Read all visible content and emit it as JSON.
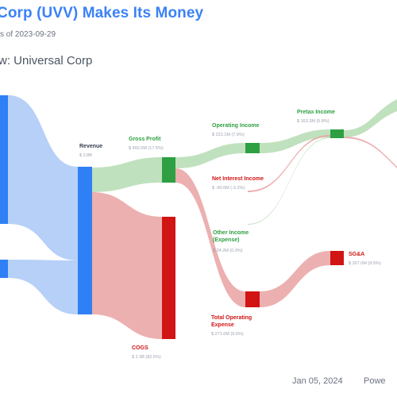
{
  "header": {
    "title": "Corp (UVV) Makes Its Money",
    "subtitle": "s of 2023-09-29",
    "company": "w: Universal Corp"
  },
  "footer": {
    "date": "Jan 05, 2024",
    "brand": "Powe"
  },
  "colors": {
    "blue": "#2f80f5",
    "blue_flow": "#a9c8f7",
    "green": "#2ea043",
    "green_flow": "#b5dcb3",
    "red": "#d11414",
    "red_flow": "#e9a2a2",
    "title": "#3b82f6"
  },
  "chart_data": {
    "type": "sankey",
    "title": "Corp (UVV) Makes Its Money",
    "nodes": [
      {
        "id": "revenue",
        "label": "Revenue",
        "value_text": "$ 2.8B",
        "color": "blue"
      },
      {
        "id": "gross_profit",
        "label": "Gross Profit",
        "value_text": "$ 492.0M (17.5%)",
        "color": "green"
      },
      {
        "id": "cogs",
        "label": "COGS",
        "value_text": "$ 2.3B (82.5%)",
        "color": "red"
      },
      {
        "id": "operating_income",
        "label": "Operating Income",
        "value_text": "$ 222.1M (7.9%)",
        "color": "green"
      },
      {
        "id": "total_operating_expense",
        "label": "Total Operating Expense",
        "value_text": "$ 271.0M (9.6%)",
        "color": "red"
      },
      {
        "id": "pretax_income",
        "label": "Pretax Income",
        "value_text": "$ 163.3M (5.8%)",
        "color": "green"
      },
      {
        "id": "net_interest_income",
        "label": "Net Interest Income",
        "value_text": "$ -90.0M (-3.2%)",
        "color": "red"
      },
      {
        "id": "other_income",
        "label": "Other Income (Expense)",
        "value_text": "$ 24.2M (0.9%)",
        "color": "green"
      },
      {
        "id": "sga",
        "label": "SG&A",
        "value_text": "$ 267.0M (9.5%)",
        "color": "red"
      }
    ],
    "links": [
      {
        "source": "segment_1",
        "target": "revenue",
        "value": 2.23,
        "color": "blue"
      },
      {
        "source": "segment_2",
        "target": "revenue",
        "value": 0.57,
        "color": "blue"
      },
      {
        "source": "revenue",
        "target": "gross_profit",
        "value": 0.492,
        "color": "green"
      },
      {
        "source": "revenue",
        "target": "cogs",
        "value": 2.31,
        "color": "red"
      },
      {
        "source": "gross_profit",
        "target": "operating_income",
        "value": 0.222,
        "color": "green"
      },
      {
        "source": "gross_profit",
        "target": "total_operating_expense",
        "value": 0.271,
        "color": "red"
      },
      {
        "source": "operating_income",
        "target": "pretax_income",
        "value": 0.163,
        "color": "green"
      },
      {
        "source": "net_interest_income",
        "target": "pretax_income",
        "value": 0.09,
        "color": "red"
      },
      {
        "source": "other_income",
        "target": "pretax_income",
        "value": 0.024,
        "color": "green"
      },
      {
        "source": "total_operating_expense",
        "target": "sga",
        "value": 0.267,
        "color": "red"
      },
      {
        "source": "pretax_income",
        "target": "net_income",
        "value": 0.13,
        "color": "green"
      }
    ]
  }
}
